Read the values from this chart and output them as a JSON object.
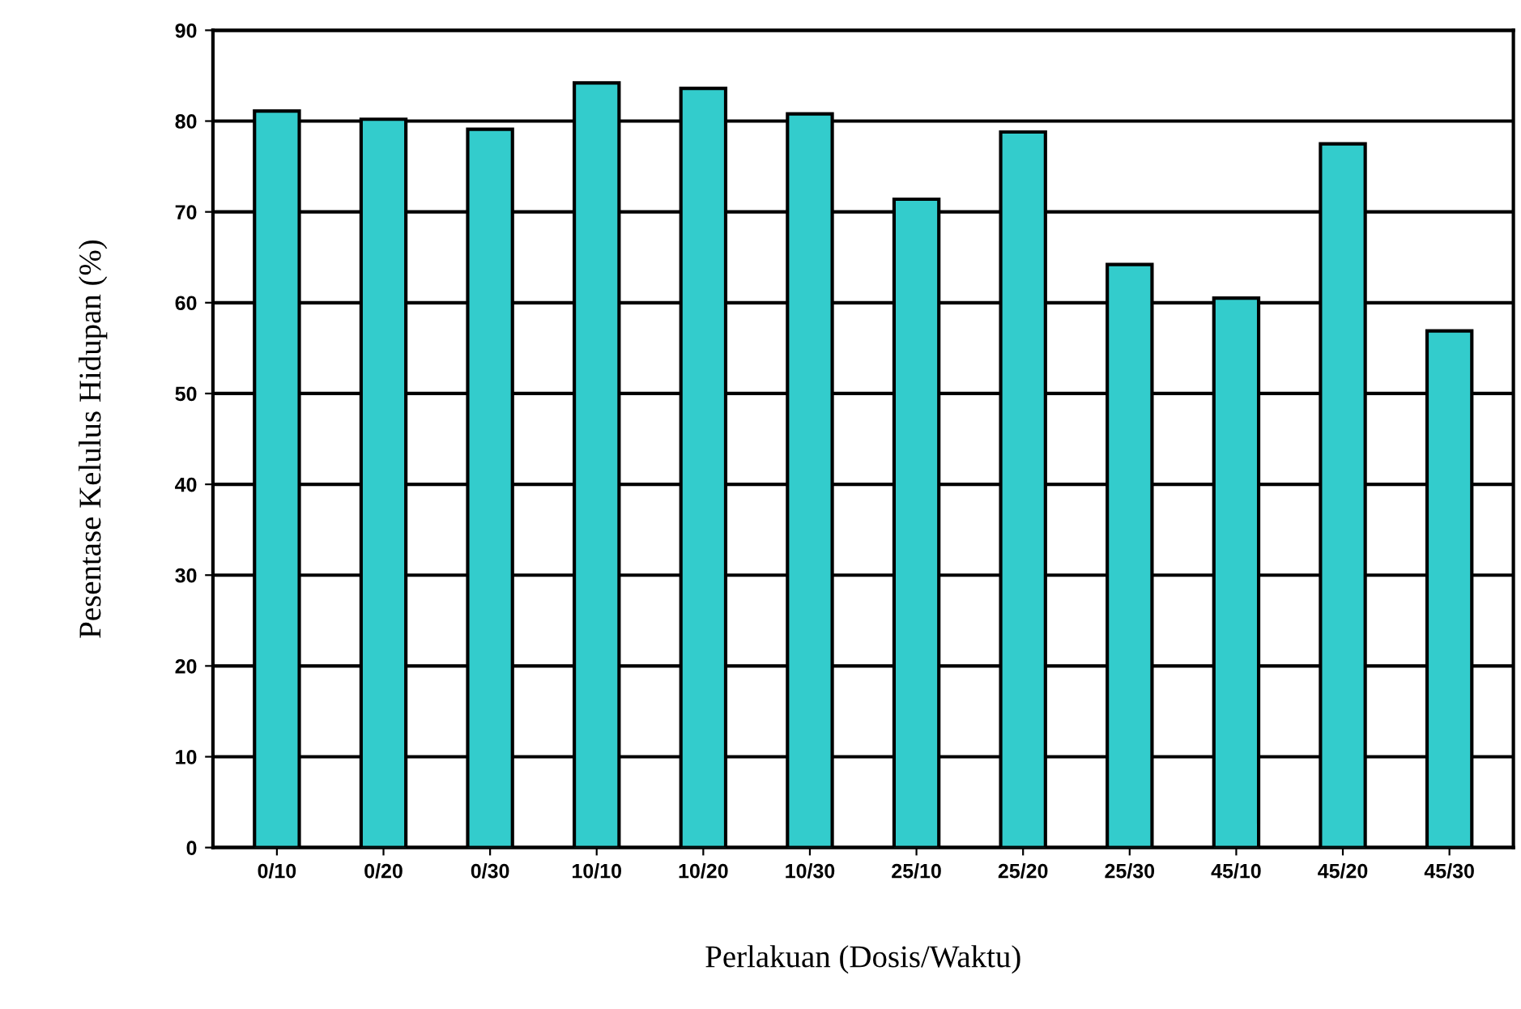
{
  "chart_data": {
    "type": "bar",
    "xlabel": "Perlakuan (Dosis/Waktu)",
    "ylabel": "Pesentase Kelulus Hidupan (%)",
    "categories": [
      "0/10",
      "0/20",
      "0/30",
      "10/10",
      "10/20",
      "10/30",
      "25/10",
      "25/20",
      "25/30",
      "45/10",
      "45/20",
      "45/30"
    ],
    "values": [
      81.1,
      80.2,
      79.1,
      84.2,
      83.6,
      80.8,
      71.4,
      78.8,
      64.2,
      60.5,
      77.5,
      56.9
    ],
    "color": "#33cccc",
    "ylim": [
      0,
      90
    ],
    "yticks": [
      0,
      10,
      20,
      30,
      40,
      50,
      60,
      70,
      80,
      90
    ],
    "grid": "y",
    "legend": false
  }
}
